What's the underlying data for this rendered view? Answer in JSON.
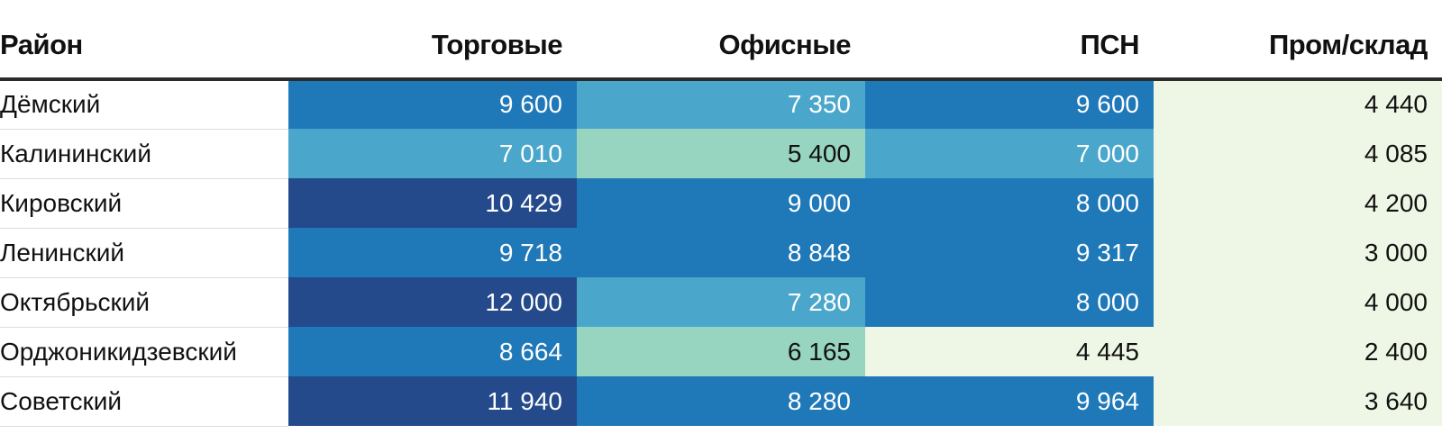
{
  "chart_data": {
    "type": "table",
    "columns": [
      "Район",
      "Торговые",
      "Офисные",
      "ПСН",
      "Пром/склад"
    ],
    "rows": [
      {
        "district": "Дёмский",
        "values": [
          9600,
          7350,
          9600,
          4440
        ],
        "labels": [
          "9 600",
          "7 350",
          "9 600",
          "4 440"
        ]
      },
      {
        "district": "Калининский",
        "values": [
          7010,
          5400,
          7000,
          4085
        ],
        "labels": [
          "7 010",
          "5 400",
          "7 000",
          "4 085"
        ]
      },
      {
        "district": "Кировский",
        "values": [
          10429,
          9000,
          8000,
          4200
        ],
        "labels": [
          "10 429",
          "9 000",
          "8 000",
          "4 200"
        ]
      },
      {
        "district": "Ленинский",
        "values": [
          9718,
          8848,
          9317,
          3000
        ],
        "labels": [
          "9 718",
          "8 848",
          "9 317",
          "3 000"
        ]
      },
      {
        "district": "Октябрьский",
        "values": [
          12000,
          7280,
          8000,
          4000
        ],
        "labels": [
          "12 000",
          "7 280",
          "8 000",
          "4 000"
        ]
      },
      {
        "district": "Орджоникидзевский",
        "values": [
          8664,
          6165,
          4445,
          2400
        ],
        "labels": [
          "8 664",
          "6 165",
          "4 445",
          "2 400"
        ]
      },
      {
        "district": "Советский",
        "values": [
          11940,
          8280,
          9964,
          3640
        ],
        "labels": [
          "11 940",
          "8 280",
          "9 964",
          "3 640"
        ]
      }
    ],
    "color_scale": {
      "thresholds": [
        5000,
        7000,
        8000,
        10000
      ],
      "colors": [
        "#eef7e5",
        "#98d5c0",
        "#4aa7cb",
        "#1f78b8",
        "#244a8c"
      ],
      "text_colors": [
        "#111111",
        "#111111",
        "#ffffff",
        "#ffffff",
        "#ffffff"
      ]
    }
  }
}
